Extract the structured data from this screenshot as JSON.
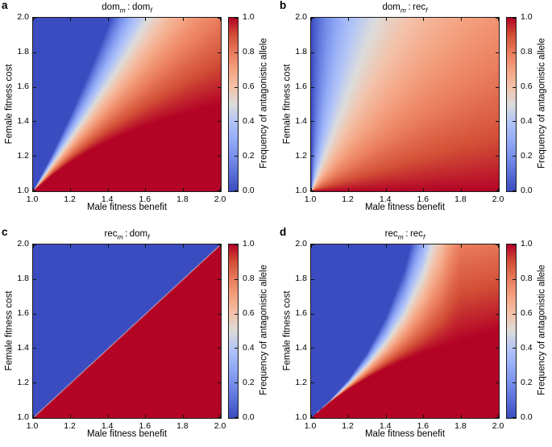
{
  "figure": {
    "background": "#ffffff"
  },
  "axes": {
    "xlabel": "Male fitness benefit",
    "ylabel": "Female fitness cost",
    "xticks": [
      "1.0",
      "1.2",
      "1.4",
      "1.6",
      "1.8",
      "2.0"
    ],
    "yticks": [
      "1.0",
      "1.2",
      "1.4",
      "1.6",
      "1.8",
      "2.0"
    ],
    "x_range": [
      1.0,
      2.0
    ],
    "y_range": [
      1.0,
      2.0
    ]
  },
  "colorbar": {
    "label": "Frequency of antagonistic allele",
    "ticks": [
      "0.0",
      "0.2",
      "0.4",
      "0.6",
      "0.8",
      "1.0"
    ],
    "range": [
      0.0,
      1.0
    ]
  },
  "colormap": {
    "name": "coolwarm",
    "blue_hex": "#3b4cc0",
    "red_hex": "#b40426",
    "stops": [
      [
        0.0,
        [
          59,
          76,
          192
        ]
      ],
      [
        0.1,
        [
          89,
          112,
          216
        ]
      ],
      [
        0.2,
        [
          120,
          144,
          235
        ]
      ],
      [
        0.3,
        [
          150,
          173,
          247
        ]
      ],
      [
        0.4,
        [
          179,
          197,
          247
        ]
      ],
      [
        0.5,
        [
          221,
          220,
          219
        ]
      ],
      [
        0.6,
        [
          243,
          195,
          171
        ]
      ],
      [
        0.7,
        [
          244,
          163,
          130
        ]
      ],
      [
        0.8,
        [
          234,
          125,
          93
        ]
      ],
      [
        0.9,
        [
          211,
          80,
          55
        ]
      ],
      [
        1.0,
        [
          180,
          4,
          38
        ]
      ]
    ]
  },
  "panels": [
    {
      "letter": "a",
      "title": {
        "g1": "dom",
        "s1": "m",
        "sep": ":",
        "g2": "dom",
        "s2": "f"
      }
    },
    {
      "letter": "b",
      "title": {
        "g1": "dom",
        "s1": "m",
        "sep": ":",
        "g2": "rec",
        "s2": "f"
      }
    },
    {
      "letter": "c",
      "title": {
        "g1": "rec",
        "s1": "m",
        "sep": ":",
        "g2": "dom",
        "s2": "f"
      }
    },
    {
      "letter": "d",
      "title": {
        "g1": "rec",
        "s1": "m",
        "sep": ":",
        "g2": "rec",
        "s2": "f"
      }
    }
  ],
  "chart_data": [
    {
      "type": "heatmap",
      "panel": "a",
      "title": "dom_m : dom_f",
      "xlabel": "Male fitness benefit",
      "ylabel": "Female fitness cost",
      "value_label": "Frequency of antagonistic allele",
      "x_range": [
        1.0,
        2.0
      ],
      "y_range": [
        1.0,
        2.0
      ],
      "value_range": [
        0.0,
        1.0
      ],
      "surface": {
        "type": "boundary_gradient",
        "blue_curve": [
          [
            1.0,
            1.0
          ],
          [
            1.1,
            1.21
          ],
          [
            1.2,
            1.44
          ],
          [
            1.3,
            1.69
          ],
          [
            1.4,
            1.96
          ],
          [
            1.5,
            2.25
          ],
          [
            1.6,
            2.56
          ],
          [
            1.7,
            2.89
          ],
          [
            1.8,
            3.24
          ],
          [
            1.9,
            3.61
          ],
          [
            2.0,
            4.0
          ]
        ],
        "red_curve": [
          [
            1.0,
            1.0
          ],
          [
            1.1,
            1.0909
          ],
          [
            1.2,
            1.1667
          ],
          [
            1.3,
            1.2308
          ],
          [
            1.4,
            1.2857
          ],
          [
            1.5,
            1.3333
          ],
          [
            1.6,
            1.375
          ],
          [
            1.7,
            1.4118
          ],
          [
            1.8,
            1.4444
          ],
          [
            1.9,
            1.4737
          ],
          [
            2.0,
            1.5
          ]
        ]
      },
      "values": {
        "x": [
          1.0,
          1.1,
          1.2,
          1.3,
          1.4,
          1.5,
          1.6,
          1.7,
          1.8,
          1.9,
          2.0
        ],
        "y": [
          1.0,
          1.1,
          1.2,
          1.3,
          1.4,
          1.5,
          1.6,
          1.7,
          1.8,
          1.9,
          2.0
        ],
        "grid_rows_y_ascending": [
          [
            0.5,
            1,
            1,
            1,
            1,
            1,
            1,
            1,
            1,
            1,
            1
          ],
          [
            0,
            0.92,
            1,
            1,
            1,
            1,
            1,
            1,
            1,
            1,
            1
          ],
          [
            0,
            0.08,
            0.88,
            1,
            1,
            1,
            1,
            1,
            1,
            1,
            1
          ],
          [
            0,
            0,
            0.51,
            0.85,
            0.98,
            1,
            1,
            1,
            1,
            1,
            1
          ],
          [
            0,
            0,
            0.15,
            0.63,
            0.83,
            0.93,
            0.98,
            1,
            1,
            1,
            1
          ],
          [
            0,
            0,
            0,
            0.41,
            0.68,
            0.82,
            0.89,
            0.94,
            0.97,
            0.99,
            1
          ],
          [
            0,
            0,
            0,
            0.2,
            0.53,
            0.71,
            0.81,
            0.87,
            0.91,
            0.94,
            0.96
          ],
          [
            0,
            0,
            0,
            0,
            0.39,
            0.6,
            0.73,
            0.81,
            0.86,
            0.89,
            0.92
          ],
          [
            0,
            0,
            0,
            0,
            0.24,
            0.49,
            0.64,
            0.74,
            0.8,
            0.85,
            0.88
          ],
          [
            0,
            0,
            0,
            0,
            0.09,
            0.38,
            0.56,
            0.67,
            0.75,
            0.8,
            0.84
          ],
          [
            0,
            0,
            0,
            0,
            0,
            0.27,
            0.47,
            0.6,
            0.69,
            0.75,
            0.8
          ]
        ]
      }
    },
    {
      "type": "heatmap",
      "panel": "b",
      "title": "dom_m : rec_f",
      "xlabel": "Male fitness benefit",
      "ylabel": "Female fitness cost",
      "value_label": "Frequency of antagonistic allele",
      "x_range": [
        1.0,
        2.0
      ],
      "y_range": [
        1.0,
        2.0
      ],
      "value_range": [
        0.0,
        1.0
      ],
      "surface": {
        "type": "fan",
        "k": 0.35
      },
      "values": {
        "x": [
          1.0,
          1.1,
          1.2,
          1.3,
          1.4,
          1.5,
          1.6,
          1.7,
          1.8,
          1.9,
          2.0
        ],
        "y": [
          1.0,
          1.1,
          1.2,
          1.3,
          1.4,
          1.5,
          1.6,
          1.7,
          1.8,
          1.9,
          2.0
        ],
        "grid_rows_y_ascending": [
          [
            0.5,
            1,
            1,
            1,
            1,
            1,
            1,
            1,
            1,
            1,
            1
          ],
          [
            0,
            0.74,
            0.85,
            0.9,
            0.92,
            0.93,
            0.94,
            0.95,
            0.96,
            0.97,
            0.97
          ],
          [
            0,
            0.59,
            0.74,
            0.81,
            0.85,
            0.88,
            0.9,
            0.91,
            0.92,
            0.93,
            0.93
          ],
          [
            0,
            0.49,
            0.66,
            0.74,
            0.79,
            0.83,
            0.85,
            0.87,
            0.88,
            0.9,
            0.9
          ],
          [
            0,
            0.42,
            0.59,
            0.68,
            0.74,
            0.78,
            0.81,
            0.83,
            0.85,
            0.87,
            0.88
          ],
          [
            0,
            0.36,
            0.53,
            0.63,
            0.7,
            0.74,
            0.77,
            0.8,
            0.82,
            0.84,
            0.85
          ],
          [
            0,
            0.32,
            0.49,
            0.59,
            0.66,
            0.7,
            0.74,
            0.77,
            0.79,
            0.81,
            0.83
          ],
          [
            0,
            0.29,
            0.45,
            0.55,
            0.62,
            0.67,
            0.71,
            0.74,
            0.77,
            0.79,
            0.8
          ],
          [
            0,
            0.26,
            0.42,
            0.52,
            0.59,
            0.64,
            0.68,
            0.71,
            0.74,
            0.76,
            0.78
          ],
          [
            0,
            0.24,
            0.39,
            0.49,
            0.56,
            0.61,
            0.66,
            0.69,
            0.72,
            0.74,
            0.76
          ],
          [
            0,
            0.22,
            0.36,
            0.46,
            0.53,
            0.59,
            0.63,
            0.67,
            0.7,
            0.72,
            0.74
          ]
        ]
      }
    },
    {
      "type": "heatmap",
      "panel": "c",
      "title": "rec_m : dom_f",
      "xlabel": "Male fitness benefit",
      "ylabel": "Female fitness cost",
      "value_label": "Frequency of antagonistic allele",
      "x_range": [
        1.0,
        2.0
      ],
      "y_range": [
        1.0,
        2.0
      ],
      "value_range": [
        0.0,
        1.0
      ],
      "surface": {
        "type": "boundary_gradient",
        "blue_curve": [
          [
            1.0,
            1.004
          ],
          [
            2.0,
            2.004
          ]
        ],
        "red_curve": [
          [
            1.0,
            0.996
          ],
          [
            2.0,
            1.996
          ]
        ]
      },
      "values": {
        "x": [
          1.0,
          1.1,
          1.2,
          1.3,
          1.4,
          1.5,
          1.6,
          1.7,
          1.8,
          1.9,
          2.0
        ],
        "y": [
          1.0,
          1.1,
          1.2,
          1.3,
          1.4,
          1.5,
          1.6,
          1.7,
          1.8,
          1.9,
          2.0
        ],
        "grid_rows_y_ascending": [
          [
            0.5,
            1,
            1,
            1,
            1,
            1,
            1,
            1,
            1,
            1,
            1
          ],
          [
            0,
            0.5,
            1,
            1,
            1,
            1,
            1,
            1,
            1,
            1,
            1
          ],
          [
            0,
            0,
            0.5,
            1,
            1,
            1,
            1,
            1,
            1,
            1,
            1
          ],
          [
            0,
            0,
            0,
            0.5,
            1,
            1,
            1,
            1,
            1,
            1,
            1
          ],
          [
            0,
            0,
            0,
            0,
            0.5,
            1,
            1,
            1,
            1,
            1,
            1
          ],
          [
            0,
            0,
            0,
            0,
            0,
            0.5,
            1,
            1,
            1,
            1,
            1
          ],
          [
            0,
            0,
            0,
            0,
            0,
            0,
            0.5,
            1,
            1,
            1,
            1
          ],
          [
            0,
            0,
            0,
            0,
            0,
            0,
            0,
            0.5,
            1,
            1,
            1
          ],
          [
            0,
            0,
            0,
            0,
            0,
            0,
            0,
            0,
            0.5,
            1,
            1
          ],
          [
            0,
            0,
            0,
            0,
            0,
            0,
            0,
            0,
            0,
            0.5,
            1
          ],
          [
            0,
            0,
            0,
            0,
            0,
            0,
            0,
            0,
            0,
            0,
            0.5
          ]
        ]
      }
    },
    {
      "type": "heatmap",
      "panel": "d",
      "title": "rec_m : rec_f",
      "xlabel": "Male fitness benefit",
      "ylabel": "Female fitness cost",
      "value_label": "Frequency of antagonistic allele",
      "x_range": [
        1.0,
        2.0
      ],
      "y_range": [
        1.0,
        2.0
      ],
      "value_range": [
        0.0,
        1.0
      ],
      "surface": {
        "type": "boundary_gradient",
        "blue_curve": [
          [
            1.0,
            1.0
          ],
          [
            1.1,
            1.0994
          ],
          [
            1.2,
            1.2224
          ],
          [
            1.3,
            1.3785
          ],
          [
            1.4,
            1.5836
          ],
          [
            1.5,
            1.8661
          ],
          [
            1.6,
            2.2812
          ],
          [
            1.7,
            2.9554
          ],
          [
            1.8,
            4.2567
          ],
          [
            1.9,
            4.2567
          ],
          [
            2.0,
            4.2567
          ]
        ],
        "red_curve": [
          [
            1.0,
            1.0
          ],
          [
            1.1,
            1.0909
          ],
          [
            1.2,
            1.1667
          ],
          [
            1.3,
            1.2308
          ],
          [
            1.4,
            1.2857
          ],
          [
            1.5,
            1.3333
          ],
          [
            1.6,
            1.375
          ],
          [
            1.7,
            1.4118
          ],
          [
            1.8,
            1.4444
          ],
          [
            1.9,
            1.4737
          ],
          [
            2.0,
            1.5
          ]
        ]
      },
      "values": {
        "x": [
          1.0,
          1.1,
          1.2,
          1.3,
          1.4,
          1.5,
          1.6,
          1.7,
          1.8,
          1.9,
          2.0
        ],
        "y": [
          1.0,
          1.1,
          1.2,
          1.3,
          1.4,
          1.5,
          1.6,
          1.7,
          1.8,
          1.9,
          2.0
        ],
        "grid_rows_y_ascending": [
          [
            0.5,
            1,
            1,
            1,
            1,
            1,
            1,
            1,
            1,
            1,
            1
          ],
          [
            0,
            0,
            1,
            1,
            1,
            1,
            1,
            1,
            1,
            1,
            1
          ],
          [
            0,
            0,
            0.4,
            1,
            1,
            1,
            1,
            1,
            1,
            1,
            1
          ],
          [
            0,
            0,
            0,
            0.53,
            0.95,
            1,
            1,
            1,
            1,
            1,
            1
          ],
          [
            0,
            0,
            0,
            0,
            0.62,
            0.87,
            0.97,
            1,
            1,
            1,
            1
          ],
          [
            0,
            0,
            0,
            0,
            0.28,
            0.69,
            0.86,
            0.94,
            0.98,
            0.99,
            1
          ],
          [
            0,
            0,
            0,
            0,
            0,
            0.5,
            0.75,
            0.88,
            0.94,
            0.95,
            0.96
          ],
          [
            0,
            0,
            0,
            0,
            0,
            0.31,
            0.64,
            0.81,
            0.91,
            0.92,
            0.93
          ],
          [
            0,
            0,
            0,
            0,
            0,
            0.12,
            0.53,
            0.75,
            0.87,
            0.88,
            0.89
          ],
          [
            0,
            0,
            0,
            0,
            0,
            0,
            0.42,
            0.68,
            0.84,
            0.85,
            0.86
          ],
          [
            0,
            0,
            0,
            0,
            0,
            0,
            0.31,
            0.62,
            0.8,
            0.81,
            0.82
          ]
        ]
      }
    }
  ]
}
